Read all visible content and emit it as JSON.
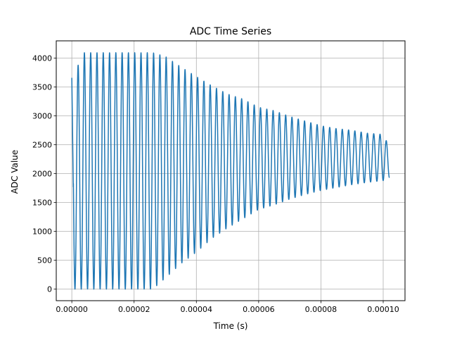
{
  "chart_data": {
    "type": "line",
    "title": "ADC Time Series",
    "xlabel": "Time (s)",
    "ylabel": "ADC Value",
    "xlim": [
      -5e-06,
      0.000107
    ],
    "ylim": [
      -200,
      4300
    ],
    "grid": true,
    "legend": "none",
    "x_ticks": [
      0,
      2e-05,
      4e-05,
      6e-05,
      8e-05,
      0.0001
    ],
    "x_tick_labels": [
      "0.00000",
      "0.00002",
      "0.00004",
      "0.00006",
      "0.00008",
      "0.00010"
    ],
    "y_ticks": [
      0,
      500,
      1000,
      1500,
      2000,
      2500,
      3000,
      3500,
      4000
    ],
    "y_tick_labels": [
      "0",
      "500",
      "1000",
      "1500",
      "2000",
      "2500",
      "3000",
      "3500",
      "4000"
    ],
    "colors": {
      "line": "#1f77b4",
      "grid": "#b0b0b0",
      "axes": "#000000"
    },
    "series": [
      {
        "description": "Damped oscillation sampled from ADC; peaks shown (period ~2.02e-6 s, 51 cycles)",
        "period_s": 2.02e-06,
        "peaks": [
          {
            "t": 0.0,
            "max": 3660,
            "min": 0
          },
          {
            "t": 4e-06,
            "max": 4095,
            "min": 0
          },
          {
            "t": 1e-05,
            "max": 4095,
            "min": 0
          },
          {
            "t": 2e-05,
            "max": 4095,
            "min": 0
          },
          {
            "t": 2.6e-05,
            "max": 4095,
            "min": 0
          },
          {
            "t": 3e-05,
            "max": 4030,
            "min": 190
          },
          {
            "t": 3.5e-05,
            "max": 3850,
            "min": 440
          },
          {
            "t": 4e-05,
            "max": 3680,
            "min": 640
          },
          {
            "t": 4.5e-05,
            "max": 3520,
            "min": 880
          },
          {
            "t": 5e-05,
            "max": 3380,
            "min": 1060
          },
          {
            "t": 5.5e-05,
            "max": 3290,
            "min": 1220
          },
          {
            "t": 6e-05,
            "max": 3150,
            "min": 1380
          },
          {
            "t": 6.5e-05,
            "max": 3090,
            "min": 1460
          },
          {
            "t": 7e-05,
            "max": 2990,
            "min": 1560
          },
          {
            "t": 7.5e-05,
            "max": 2910,
            "min": 1640
          },
          {
            "t": 8e-05,
            "max": 2830,
            "min": 1710
          },
          {
            "t": 8.5e-05,
            "max": 2780,
            "min": 1760
          },
          {
            "t": 9e-05,
            "max": 2750,
            "min": 1810
          },
          {
            "t": 9.5e-05,
            "max": 2700,
            "min": 1850
          },
          {
            "t": 0.0001,
            "max": 2680,
            "min": 1880
          },
          {
            "t": 0.000102,
            "max": 2460,
            "min": 1930
          }
        ]
      }
    ]
  }
}
